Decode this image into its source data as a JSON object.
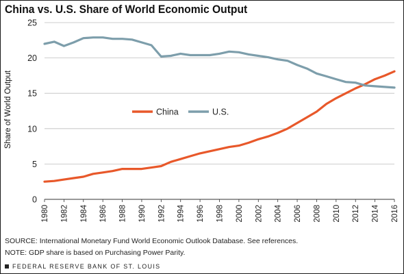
{
  "chart_data": {
    "type": "line",
    "title": "China vs. U.S. Share of World Economic Output",
    "ylabel": "Share of World Output",
    "xlabel": "",
    "xlim": [
      1980,
      2016
    ],
    "ylim": [
      0,
      25
    ],
    "x_ticks": [
      1980,
      1982,
      1984,
      1986,
      1988,
      1990,
      1992,
      1994,
      1996,
      1998,
      2000,
      2002,
      2004,
      2006,
      2008,
      2010,
      2012,
      2014,
      2016
    ],
    "y_ticks": [
      0,
      5,
      10,
      15,
      20,
      25
    ],
    "grid": "horizontal",
    "legend": "center",
    "x": [
      1980,
      1981,
      1982,
      1983,
      1984,
      1985,
      1986,
      1987,
      1988,
      1989,
      1990,
      1991,
      1992,
      1993,
      1994,
      1995,
      1996,
      1997,
      1998,
      1999,
      2000,
      2001,
      2002,
      2003,
      2004,
      2005,
      2006,
      2007,
      2008,
      2009,
      2010,
      2011,
      2012,
      2013,
      2014,
      2015,
      2016
    ],
    "series": [
      {
        "name": "China",
        "color": "#e8582a",
        "values": [
          2.5,
          2.6,
          2.8,
          3.0,
          3.2,
          3.6,
          3.8,
          4.0,
          4.3,
          4.3,
          4.3,
          4.5,
          4.7,
          5.3,
          5.7,
          6.1,
          6.5,
          6.8,
          7.1,
          7.4,
          7.6,
          8.0,
          8.5,
          8.9,
          9.4,
          10.0,
          10.8,
          11.6,
          12.4,
          13.5,
          14.3,
          15.0,
          15.7,
          16.3,
          17.0,
          17.5,
          18.1
        ]
      },
      {
        "name": "U.S.",
        "color": "#7d9eab",
        "values": [
          22.0,
          22.3,
          21.7,
          22.2,
          22.8,
          22.9,
          22.9,
          22.7,
          22.7,
          22.6,
          22.2,
          21.8,
          20.2,
          20.3,
          20.6,
          20.4,
          20.4,
          20.4,
          20.6,
          20.9,
          20.8,
          20.5,
          20.3,
          20.1,
          19.8,
          19.6,
          19.0,
          18.5,
          17.8,
          17.4,
          17.0,
          16.6,
          16.5,
          16.1,
          16.0,
          15.9,
          15.8
        ]
      }
    ]
  },
  "notes": {
    "source": "SOURCE: International Monetary Fund World Economic Outlook Database. See references.",
    "note": "NOTE: GDP share is based on Purchasing Power Parity.",
    "publisher": "FEDERAL RESERVE BANK OF ST. LOUIS"
  }
}
